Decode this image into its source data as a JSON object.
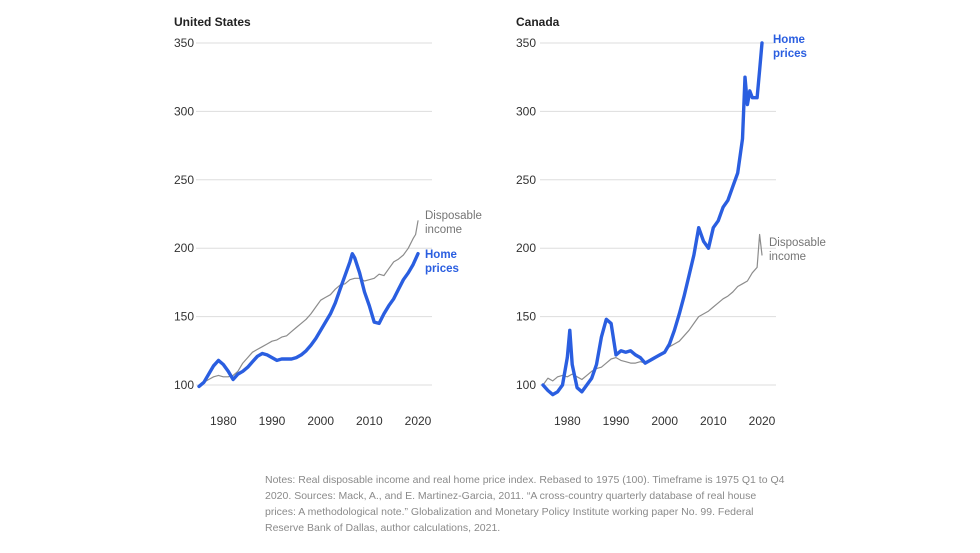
{
  "chart_data": [
    {
      "type": "line",
      "title": "United States",
      "ylim": [
        95,
        355
      ],
      "yticks": [
        100,
        150,
        200,
        250,
        300,
        350
      ],
      "xlim": [
        1975,
        2021
      ],
      "xticks": [
        1980,
        1990,
        2000,
        2010,
        2020
      ],
      "series": [
        {
          "name": "Disposable income",
          "label_lines": [
            "Disposable",
            "income"
          ],
          "color": "#8c8c8c",
          "x": [
            1975,
            1976,
            1977,
            1978,
            1979,
            1980,
            1981,
            1982,
            1983,
            1984,
            1985,
            1986,
            1987,
            1988,
            1989,
            1990,
            1991,
            1992,
            1993,
            1994,
            1995,
            1996,
            1997,
            1998,
            1999,
            2000,
            2001,
            2002,
            2003,
            2004,
            2005,
            2006,
            2007,
            2008,
            2009,
            2010,
            2011,
            2012,
            2013,
            2014,
            2015,
            2016,
            2017,
            2018,
            2019,
            2019.5,
            2020
          ],
          "y": [
            100,
            102,
            104,
            106,
            107,
            106,
            106,
            107,
            110,
            116,
            120,
            124,
            126,
            128,
            130,
            132,
            133,
            135,
            136,
            139,
            142,
            145,
            148,
            152,
            157,
            162,
            164,
            166,
            170,
            173,
            174,
            177,
            178,
            178,
            176,
            177,
            178,
            181,
            180,
            185,
            190,
            192,
            195,
            200,
            207,
            210,
            220
          ]
        },
        {
          "name": "Home prices",
          "label_lines": [
            "Home",
            "prices"
          ],
          "color": "#2a5ee0",
          "x": [
            1975,
            1976,
            1977,
            1978,
            1979,
            1980,
            1981,
            1982,
            1983,
            1984,
            1985,
            1986,
            1987,
            1988,
            1989,
            1990,
            1991,
            1992,
            1993,
            1994,
            1995,
            1996,
            1997,
            1998,
            1999,
            2000,
            2001,
            2002,
            2003,
            2004,
            2005,
            2006,
            2006.5,
            2007,
            2008,
            2009,
            2010,
            2011,
            2012,
            2013,
            2014,
            2015,
            2016,
            2017,
            2018,
            2019,
            2020
          ],
          "y": [
            99,
            102,
            108,
            114,
            118,
            115,
            110,
            104,
            108,
            110,
            113,
            117,
            121,
            123,
            122,
            120,
            118,
            119,
            119,
            119,
            120,
            122,
            125,
            129,
            134,
            140,
            146,
            152,
            160,
            170,
            180,
            190,
            196,
            193,
            182,
            168,
            158,
            146,
            145,
            152,
            158,
            163,
            170,
            177,
            182,
            188,
            196
          ]
        }
      ]
    },
    {
      "type": "line",
      "title": "Canada",
      "ylim": [
        95,
        355
      ],
      "yticks": [
        100,
        150,
        200,
        250,
        300,
        350
      ],
      "xlim": [
        1975,
        2021
      ],
      "xticks": [
        1980,
        1990,
        2000,
        2010,
        2020
      ],
      "series": [
        {
          "name": "Disposable income",
          "label_lines": [
            "Disposable",
            "income"
          ],
          "color": "#8c8c8c",
          "x": [
            1975,
            1976,
            1977,
            1978,
            1979,
            1980,
            1981,
            1982,
            1983,
            1984,
            1985,
            1986,
            1987,
            1988,
            1989,
            1990,
            1991,
            1992,
            1993,
            1994,
            1995,
            1996,
            1997,
            1998,
            1999,
            2000,
            2001,
            2002,
            2003,
            2004,
            2005,
            2006,
            2007,
            2008,
            2009,
            2010,
            2011,
            2012,
            2013,
            2014,
            2015,
            2016,
            2017,
            2018,
            2019,
            2019.5,
            2020
          ],
          "y": [
            100,
            105,
            103,
            106,
            107,
            106,
            108,
            106,
            104,
            107,
            110,
            112,
            113,
            116,
            119,
            120,
            118,
            117,
            116,
            116,
            117,
            116,
            118,
            120,
            122,
            125,
            128,
            130,
            132,
            136,
            140,
            145,
            150,
            152,
            154,
            157,
            160,
            163,
            165,
            168,
            172,
            174,
            176,
            182,
            186,
            210,
            195
          ]
        },
        {
          "name": "Home prices",
          "label_lines": [
            "Home",
            "prices"
          ],
          "color": "#2a5ee0",
          "x": [
            1975,
            1976,
            1977,
            1978,
            1979,
            1980,
            1980.5,
            1981,
            1982,
            1983,
            1984,
            1985,
            1986,
            1987,
            1988,
            1989,
            1990,
            1991,
            1992,
            1993,
            1994,
            1995,
            1996,
            1997,
            1998,
            1999,
            2000,
            2001,
            2002,
            2003,
            2004,
            2005,
            2006,
            2007,
            2008,
            2009,
            2010,
            2011,
            2012,
            2013,
            2014,
            2015,
            2016,
            2016.5,
            2017,
            2017.5,
            2018,
            2019,
            2019.5,
            2020
          ],
          "y": [
            100,
            96,
            93,
            95,
            100,
            120,
            140,
            115,
            98,
            95,
            100,
            105,
            115,
            135,
            148,
            145,
            122,
            125,
            124,
            125,
            122,
            120,
            116,
            118,
            120,
            122,
            124,
            130,
            140,
            152,
            165,
            180,
            195,
            215,
            205,
            200,
            215,
            220,
            230,
            235,
            245,
            255,
            280,
            325,
            305,
            315,
            310,
            310,
            330,
            350
          ]
        }
      ]
    }
  ],
  "notes": "Notes: Real disposable income and real home price index. Rebased to 1975 (100). Timeframe is 1975 Q1 to Q4 2020. Sources: Mack, A., and E. Martinez-Garcia, 2011. “A cross-country quarterly database of real house prices: A methodological note.” Globalization and Monetary Policy Institute working paper No. 99. Federal Reserve Bank of Dallas, author calculations, 2021."
}
